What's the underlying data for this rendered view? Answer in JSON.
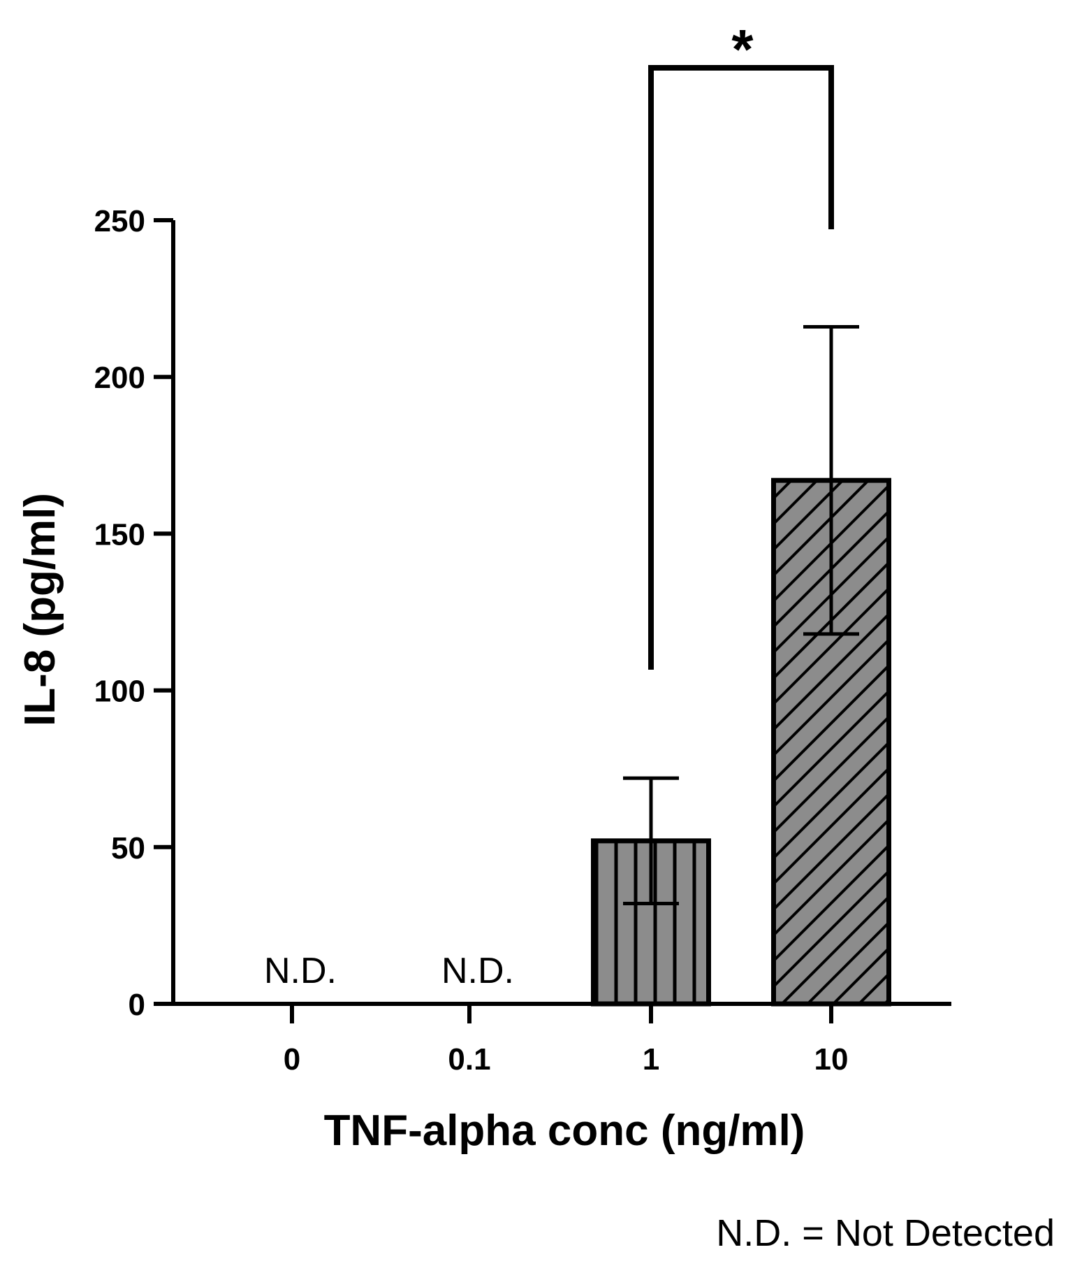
{
  "chart_data": {
    "type": "bar",
    "categories": [
      "0",
      "0.1",
      "1",
      "10"
    ],
    "values": [
      null,
      null,
      52,
      167
    ],
    "errors": [
      null,
      null,
      20,
      49
    ],
    "not_detected_label": "N.D.",
    "not_detected": [
      true,
      true,
      false,
      false
    ],
    "patterns": [
      "none",
      "none",
      "vertical",
      "diagonal"
    ],
    "xlabel": "TNF-alpha conc (ng/ml)",
    "ylabel": "IL-8 (pg/ml)",
    "ylim": [
      0,
      250
    ],
    "yticks": [
      0,
      50,
      100,
      150,
      200,
      250
    ],
    "yticks_labels": [
      "0",
      "50",
      "100",
      "150",
      "200",
      "250"
    ],
    "significance": {
      "from": "1",
      "to": "10",
      "label": "*"
    },
    "footnote": "N.D. = Not Detected",
    "colors": {
      "bar_fill": "#8c8c8c",
      "stroke": "#000000",
      "background": "#ffffff"
    },
    "grid": false
  }
}
